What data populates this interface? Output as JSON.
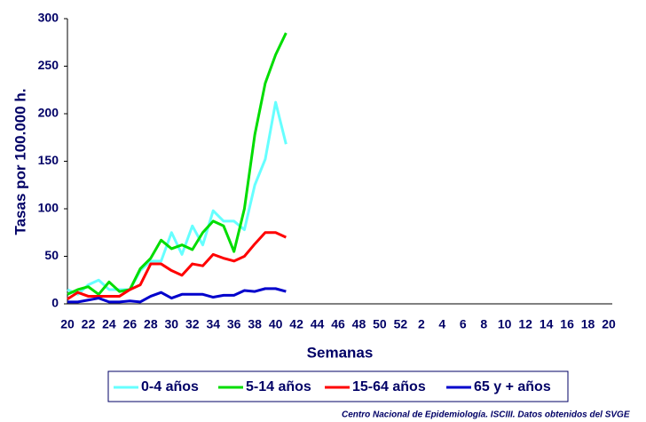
{
  "chart_data": {
    "type": "line",
    "x_label": "Semanas",
    "y_label": "Tasas por 100.000 h.",
    "source": "Centro Nacional de Epidemiología. ISCIII. Datos obtenidos del SVGE",
    "categories": [
      20,
      null,
      22,
      null,
      24,
      null,
      26,
      null,
      28,
      null,
      30,
      null,
      32,
      null,
      34,
      null,
      36,
      null,
      38,
      null,
      40,
      null,
      42,
      null,
      44,
      null,
      46,
      null,
      48,
      null,
      50,
      null,
      52,
      null,
      2,
      null,
      4,
      null,
      6,
      null,
      8,
      null,
      10,
      null,
      12,
      null,
      14,
      null,
      16,
      null,
      18,
      null,
      20
    ],
    "ylim": [
      0,
      300
    ],
    "yticks": [
      0,
      50,
      100,
      150,
      200,
      250,
      300
    ],
    "series": [
      {
        "name": "0-4 años",
        "color": "#66ffff",
        "values": [
          15,
          10,
          20,
          25,
          15,
          15,
          15,
          35,
          45,
          45,
          75,
          52,
          82,
          62,
          98,
          87,
          87,
          78,
          125,
          152,
          212,
          168,
          null,
          null,
          null,
          null,
          null,
          null,
          null,
          null,
          null,
          null,
          null,
          null,
          null,
          null,
          null,
          null,
          null,
          null,
          null,
          null,
          null,
          null,
          null,
          null,
          null,
          null,
          null,
          null,
          null,
          null,
          null
        ]
      },
      {
        "name": "5-14 años",
        "color": "#00dd00",
        "values": [
          10,
          15,
          18,
          10,
          23,
          13,
          15,
          37,
          48,
          67,
          58,
          62,
          57,
          75,
          87,
          82,
          55,
          100,
          178,
          232,
          262,
          285,
          null,
          null,
          null,
          null,
          null,
          null,
          null,
          null,
          null,
          null,
          null,
          null,
          null,
          null,
          null,
          null,
          null,
          null,
          null,
          null,
          null,
          null,
          null,
          null,
          null,
          null,
          null,
          null,
          null,
          null,
          null
        ]
      },
      {
        "name": "15-64 años",
        "color": "#ff0000",
        "values": [
          5,
          12,
          8,
          8,
          8,
          8,
          15,
          20,
          42,
          42,
          35,
          30,
          42,
          40,
          52,
          48,
          45,
          50,
          63,
          75,
          75,
          70,
          null,
          null,
          null,
          null,
          null,
          null,
          null,
          null,
          null,
          null,
          null,
          null,
          null,
          null,
          null,
          null,
          null,
          null,
          null,
          null,
          null,
          null,
          null,
          null,
          null,
          null,
          null,
          null,
          null,
          null,
          null
        ]
      },
      {
        "name": "65 y + años",
        "color": "#0000cc",
        "values": [
          2,
          2,
          4,
          6,
          2,
          2,
          3,
          2,
          8,
          12,
          6,
          10,
          10,
          10,
          7,
          9,
          9,
          14,
          13,
          16,
          16,
          13,
          null,
          null,
          null,
          null,
          null,
          null,
          null,
          null,
          null,
          null,
          null,
          null,
          null,
          null,
          null,
          null,
          null,
          null,
          null,
          null,
          null,
          null,
          null,
          null,
          null,
          null,
          null,
          null,
          null,
          null,
          null
        ]
      }
    ]
  }
}
